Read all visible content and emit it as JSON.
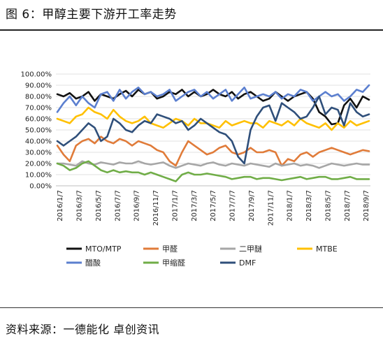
{
  "figure": {
    "title": "图 6：甲醇主要下游开工率走势",
    "source": "资料来源：一德能化  卓创资讯"
  },
  "chart_data": {
    "type": "line",
    "title": "",
    "xlabel": "",
    "ylabel": "",
    "ylim": [
      0,
      100
    ],
    "y_ticks": [
      "0.00%",
      "10.00%",
      "20.00%",
      "30.00%",
      "40.00%",
      "50.00%",
      "60.00%",
      "70.00%",
      "80.00%",
      "90.00%",
      "100.00%"
    ],
    "x_ticks": [
      "2016/1/7",
      "2016/3/7",
      "2016/5/7",
      "2016/7/7",
      "2016/9/7",
      "2016/11/7",
      "2017/1/7",
      "2017/3/7",
      "2017/5/7",
      "2017/7/7",
      "2017/9/7",
      "2017/11/7",
      "2018/1/7",
      "2018/3/7",
      "2018/5/7",
      "2018/7/7",
      "2018/9/7"
    ],
    "grid": true,
    "legend_position": "bottom",
    "series": [
      {
        "name": "MTO/MTP",
        "color": "#111111",
        "values": [
          82,
          80,
          83,
          78,
          80,
          84,
          76,
          82,
          80,
          78,
          82,
          85,
          80,
          86,
          82,
          84,
          78,
          80,
          84,
          82,
          86,
          80,
          84,
          80,
          82,
          86,
          82,
          80,
          84,
          78,
          82,
          84,
          80,
          76,
          78,
          84,
          80,
          76,
          80,
          82,
          84,
          78,
          66,
          62,
          55,
          56,
          72,
          78,
          70,
          80,
          77
        ]
      },
      {
        "name": "甲醛",
        "color": "#e07b39",
        "values": [
          36,
          28,
          22,
          36,
          40,
          42,
          38,
          44,
          40,
          38,
          42,
          40,
          36,
          40,
          38,
          36,
          32,
          30,
          22,
          18,
          30,
          40,
          36,
          32,
          28,
          30,
          34,
          36,
          30,
          28,
          30,
          34,
          30,
          30,
          32,
          30,
          18,
          24,
          22,
          28,
          30,
          26,
          30,
          32,
          34,
          32,
          30,
          28,
          30,
          32,
          31
        ]
      },
      {
        "name": "二甲醚",
        "color": "#a6a6a6",
        "values": [
          20,
          20,
          19,
          18,
          22,
          20,
          19,
          21,
          20,
          19,
          21,
          20,
          20,
          22,
          20,
          19,
          20,
          21,
          18,
          16,
          18,
          20,
          19,
          18,
          20,
          21,
          19,
          18,
          20,
          19,
          18,
          20,
          19,
          18,
          17,
          20,
          18,
          19,
          20,
          18,
          19,
          18,
          16,
          18,
          20,
          19,
          18,
          19,
          20,
          19,
          19
        ]
      },
      {
        "name": "MTBE",
        "color": "#ffc000",
        "values": [
          60,
          58,
          56,
          62,
          64,
          70,
          66,
          64,
          60,
          68,
          62,
          58,
          56,
          58,
          62,
          56,
          54,
          52,
          56,
          60,
          58,
          54,
          60,
          56,
          56,
          54,
          52,
          58,
          54,
          56,
          58,
          56,
          56,
          52,
          58,
          56,
          54,
          58,
          54,
          60,
          56,
          54,
          52,
          56,
          50,
          56,
          52,
          58,
          54,
          56,
          58
        ]
      },
      {
        "name": "醋酸",
        "color": "#5b7fcf",
        "values": [
          66,
          74,
          80,
          72,
          80,
          74,
          70,
          82,
          84,
          76,
          86,
          78,
          84,
          88,
          82,
          84,
          80,
          82,
          86,
          76,
          80,
          84,
          86,
          80,
          84,
          78,
          82,
          86,
          76,
          82,
          88,
          78,
          80,
          82,
          80,
          84,
          78,
          82,
          80,
          86,
          84,
          76,
          80,
          84,
          80,
          82,
          76,
          80,
          86,
          84,
          90
        ]
      },
      {
        "name": "甲缩醛",
        "color": "#70ad47",
        "values": [
          20,
          18,
          14,
          16,
          20,
          22,
          18,
          14,
          12,
          14,
          12,
          13,
          12,
          12,
          10,
          12,
          10,
          8,
          6,
          4,
          10,
          12,
          10,
          10,
          11,
          10,
          9,
          8,
          6,
          7,
          8,
          8,
          6,
          7,
          7,
          6,
          5,
          6,
          7,
          8,
          6,
          7,
          8,
          8,
          6,
          6,
          7,
          8,
          6,
          6,
          6
        ]
      },
      {
        "name": "DMF",
        "color": "#2f4f7a",
        "values": [
          40,
          36,
          40,
          44,
          50,
          56,
          52,
          40,
          44,
          60,
          56,
          50,
          48,
          54,
          58,
          56,
          64,
          62,
          60,
          56,
          58,
          50,
          54,
          60,
          56,
          52,
          48,
          46,
          40,
          26,
          20,
          50,
          62,
          70,
          72,
          58,
          74,
          70,
          66,
          60,
          62,
          70,
          80,
          64,
          70,
          68,
          54,
          74,
          66,
          62,
          64
        ]
      }
    ]
  }
}
